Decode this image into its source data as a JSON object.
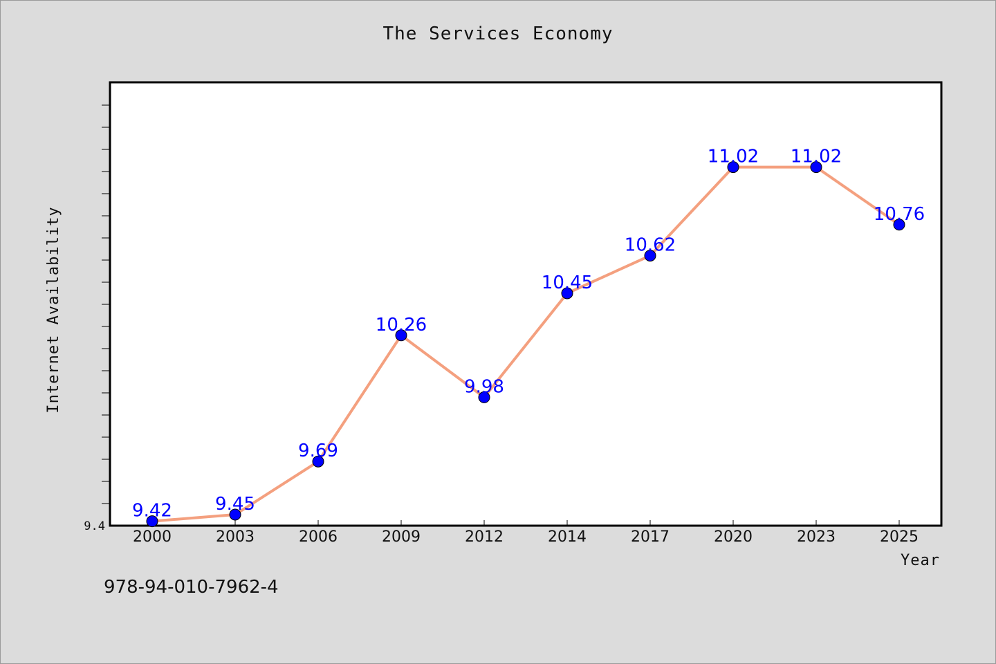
{
  "title": "The Services Economy",
  "footnote": "978-94-010-7962-4",
  "chart_data": {
    "type": "line",
    "title": "The Services Economy",
    "xlabel": "Year",
    "ylabel": "Internet Availability",
    "categories": [
      "2000",
      "2003",
      "2006",
      "2009",
      "2012",
      "2014",
      "2017",
      "2020",
      "2023",
      "2025"
    ],
    "series": [
      {
        "values": [
          9.42,
          9.45,
          9.69,
          10.26,
          9.98,
          10.45,
          10.62,
          11.02,
          11.02,
          10.76
        ],
        "line_color": "#f4a07f",
        "marker_color": "#0000ff",
        "label_color": "#0000ff"
      }
    ],
    "y_tick_labels": [
      "9.4"
    ],
    "ylim": [
      9.4,
      11.4
    ],
    "grid": false,
    "legend": "none"
  }
}
